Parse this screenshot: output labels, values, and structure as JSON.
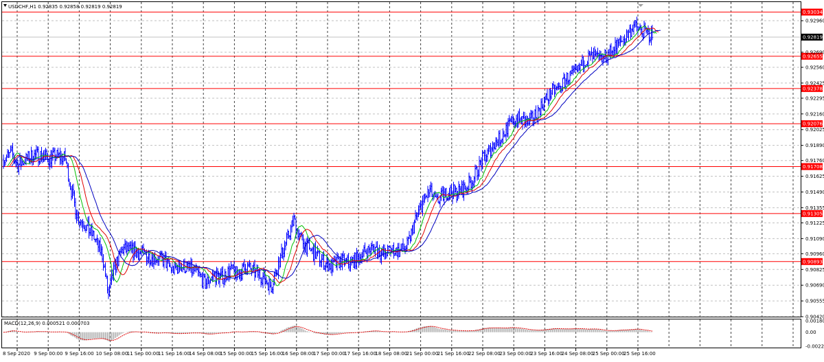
{
  "symbol_header": "USDCHF,H1  0.92835 0.92858 0.92819 0.92819",
  "chart_data": {
    "type": "candlestick",
    "symbol": "USDCHF",
    "timeframe": "H1",
    "ohlc": {
      "open": 0.92835,
      "high": 0.92858,
      "low": 0.92819,
      "close": 0.92819
    },
    "price_range": [
      0.9042,
      0.9312
    ],
    "price_ticks": [
      0.9296,
      0.9269,
      0.9256,
      0.92425,
      0.92295,
      0.9216,
      0.92025,
      0.9189,
      0.9176,
      0.91625,
      0.9149,
      0.91355,
      0.91225,
      0.9109,
      0.9096,
      0.90825,
      0.9069,
      0.90555,
      0.9042
    ],
    "horizontal_levels": [
      0.93034,
      0.92655,
      0.92378,
      0.92076,
      0.91708,
      0.91305,
      0.90893
    ],
    "current_price": 0.92819,
    "level_color": "#ff0000",
    "bar_color": "#0000ff",
    "ma_colors": [
      "#00c000",
      "#e00000",
      "#0000c0"
    ],
    "time_labels": [
      "8 Sep 2020",
      "9 Sep 00:00",
      "9 Sep 16:00",
      "10 Sep 08:00",
      "11 Sep 00:00",
      "11 Sep 16:00",
      "14 Sep 08:00",
      "15 Sep 00:00",
      "15 Sep 16:00",
      "16 Sep 08:00",
      "17 Sep 00:00",
      "17 Sep 16:00",
      "18 Sep 08:00",
      "21 Sep 00:00",
      "21 Sep 16:00",
      "22 Sep 08:00",
      "23 Sep 00:00",
      "23 Sep 16:00",
      "24 Sep 08:00",
      "25 Sep 00:00",
      "25 Sep 16:00"
    ],
    "price_path": [
      [
        0,
        0.9177
      ],
      [
        8,
        0.9182
      ],
      [
        14,
        0.9172
      ],
      [
        20,
        0.9176
      ],
      [
        28,
        0.918
      ],
      [
        36,
        0.9181
      ],
      [
        44,
        0.9178
      ],
      [
        52,
        0.918
      ],
      [
        60,
        0.9178
      ],
      [
        66,
        0.915
      ],
      [
        72,
        0.9128
      ],
      [
        80,
        0.912
      ],
      [
        88,
        0.911
      ],
      [
        96,
        0.9095
      ],
      [
        102,
        0.906
      ],
      [
        108,
        0.9085
      ],
      [
        116,
        0.91
      ],
      [
        124,
        0.9098
      ],
      [
        132,
        0.9097
      ],
      [
        140,
        0.9094
      ],
      [
        148,
        0.9093
      ],
      [
        156,
        0.909
      ],
      [
        164,
        0.9082
      ],
      [
        172,
        0.9086
      ],
      [
        180,
        0.9083
      ],
      [
        188,
        0.908
      ],
      [
        196,
        0.907
      ],
      [
        204,
        0.9078
      ],
      [
        212,
        0.9075
      ],
      [
        220,
        0.9082
      ],
      [
        228,
        0.9078
      ],
      [
        236,
        0.9085
      ],
      [
        244,
        0.908
      ],
      [
        252,
        0.9076
      ],
      [
        260,
        0.9068
      ],
      [
        268,
        0.909
      ],
      [
        276,
        0.911
      ],
      [
        282,
        0.9125
      ],
      [
        288,
        0.911
      ],
      [
        296,
        0.91
      ],
      [
        304,
        0.9095
      ],
      [
        312,
        0.9088
      ],
      [
        320,
        0.9085
      ],
      [
        328,
        0.909
      ],
      [
        336,
        0.9088
      ],
      [
        344,
        0.9092
      ],
      [
        352,
        0.9098
      ],
      [
        360,
        0.9102
      ],
      [
        368,
        0.9095
      ],
      [
        376,
        0.91
      ],
      [
        384,
        0.9098
      ],
      [
        392,
        0.9102
      ],
      [
        400,
        0.9125
      ],
      [
        408,
        0.9142
      ],
      [
        414,
        0.915
      ],
      [
        420,
        0.914
      ],
      [
        426,
        0.9145
      ],
      [
        432,
        0.915
      ],
      [
        440,
        0.9148
      ],
      [
        448,
        0.9152
      ],
      [
        456,
        0.916
      ],
      [
        464,
        0.9175
      ],
      [
        470,
        0.9182
      ],
      [
        476,
        0.919
      ],
      [
        482,
        0.9195
      ],
      [
        490,
        0.9205
      ],
      [
        498,
        0.9212
      ],
      [
        504,
        0.921
      ],
      [
        510,
        0.9208
      ],
      [
        516,
        0.9215
      ],
      [
        524,
        0.9225
      ],
      [
        532,
        0.9235
      ],
      [
        540,
        0.9238
      ],
      [
        548,
        0.9248
      ],
      [
        556,
        0.925
      ],
      [
        564,
        0.9262
      ],
      [
        572,
        0.9265
      ],
      [
        580,
        0.9262
      ],
      [
        588,
        0.9268
      ],
      [
        596,
        0.9275
      ],
      [
        604,
        0.9282
      ],
      [
        612,
        0.9292
      ],
      [
        618,
        0.9288
      ],
      [
        624,
        0.9285
      ],
      [
        630,
        0.9283
      ]
    ],
    "macd": {
      "label": "MACD(12,26,9) 0.000521 0.000703",
      "ticks": [
        0.001807,
        0.0,
        -0.002219
      ],
      "range": [
        -0.00245,
        0.00205
      ]
    }
  }
}
